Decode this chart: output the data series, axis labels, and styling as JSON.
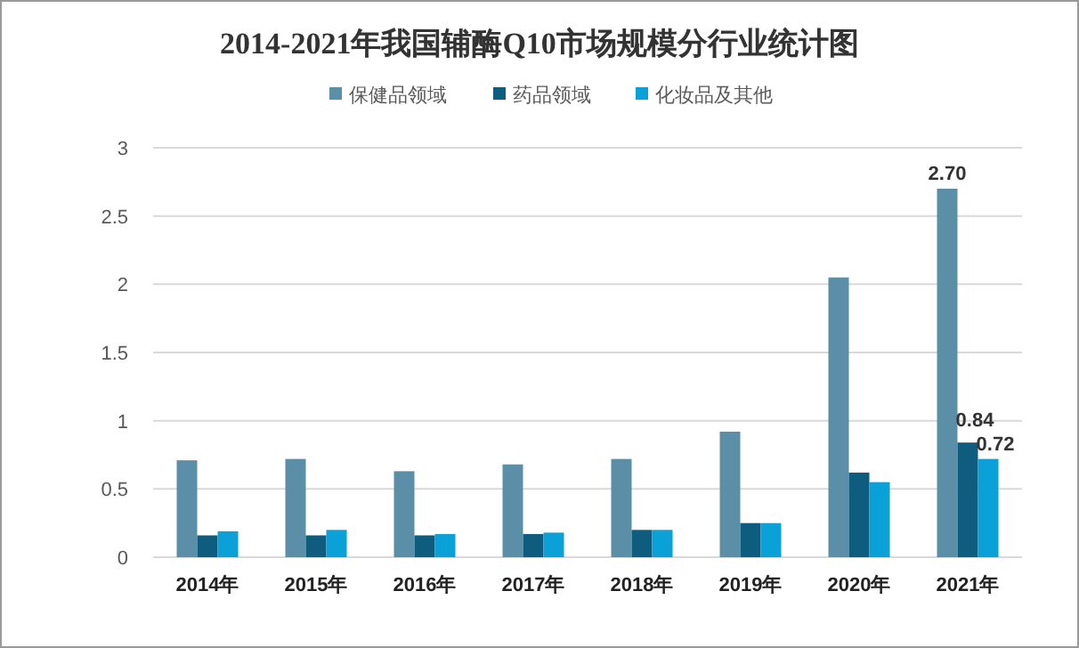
{
  "chart_data": {
    "type": "bar",
    "title": "2014-2021年我国辅酶Q10市场规模分行业统计图",
    "categories": [
      "2014年",
      "2015年",
      "2016年",
      "2017年",
      "2018年",
      "2019年",
      "2020年",
      "2021年"
    ],
    "series": [
      {
        "name": "保健品领域",
        "color": "#5b8fa8",
        "values": [
          0.71,
          0.72,
          0.63,
          0.68,
          0.72,
          0.92,
          2.05,
          2.7
        ],
        "value_labels": [
          null,
          null,
          null,
          null,
          null,
          null,
          null,
          "2.70"
        ]
      },
      {
        "name": "药品领域",
        "color": "#0e5c7e",
        "values": [
          0.16,
          0.16,
          0.16,
          0.17,
          0.2,
          0.25,
          0.62,
          0.84
        ],
        "value_labels": [
          null,
          null,
          null,
          null,
          null,
          null,
          null,
          "0.84"
        ]
      },
      {
        "name": "化妆品及其他",
        "color": "#0aa0d8",
        "values": [
          0.19,
          0.2,
          0.17,
          0.18,
          0.2,
          0.25,
          0.55,
          0.72
        ],
        "value_labels": [
          null,
          null,
          null,
          null,
          null,
          null,
          null,
          "0.72"
        ]
      }
    ],
    "ylim": [
      0,
      3
    ],
    "yticks": [
      0,
      0.5,
      1,
      1.5,
      2,
      2.5,
      3
    ],
    "grid": "y",
    "legend": "top"
  }
}
